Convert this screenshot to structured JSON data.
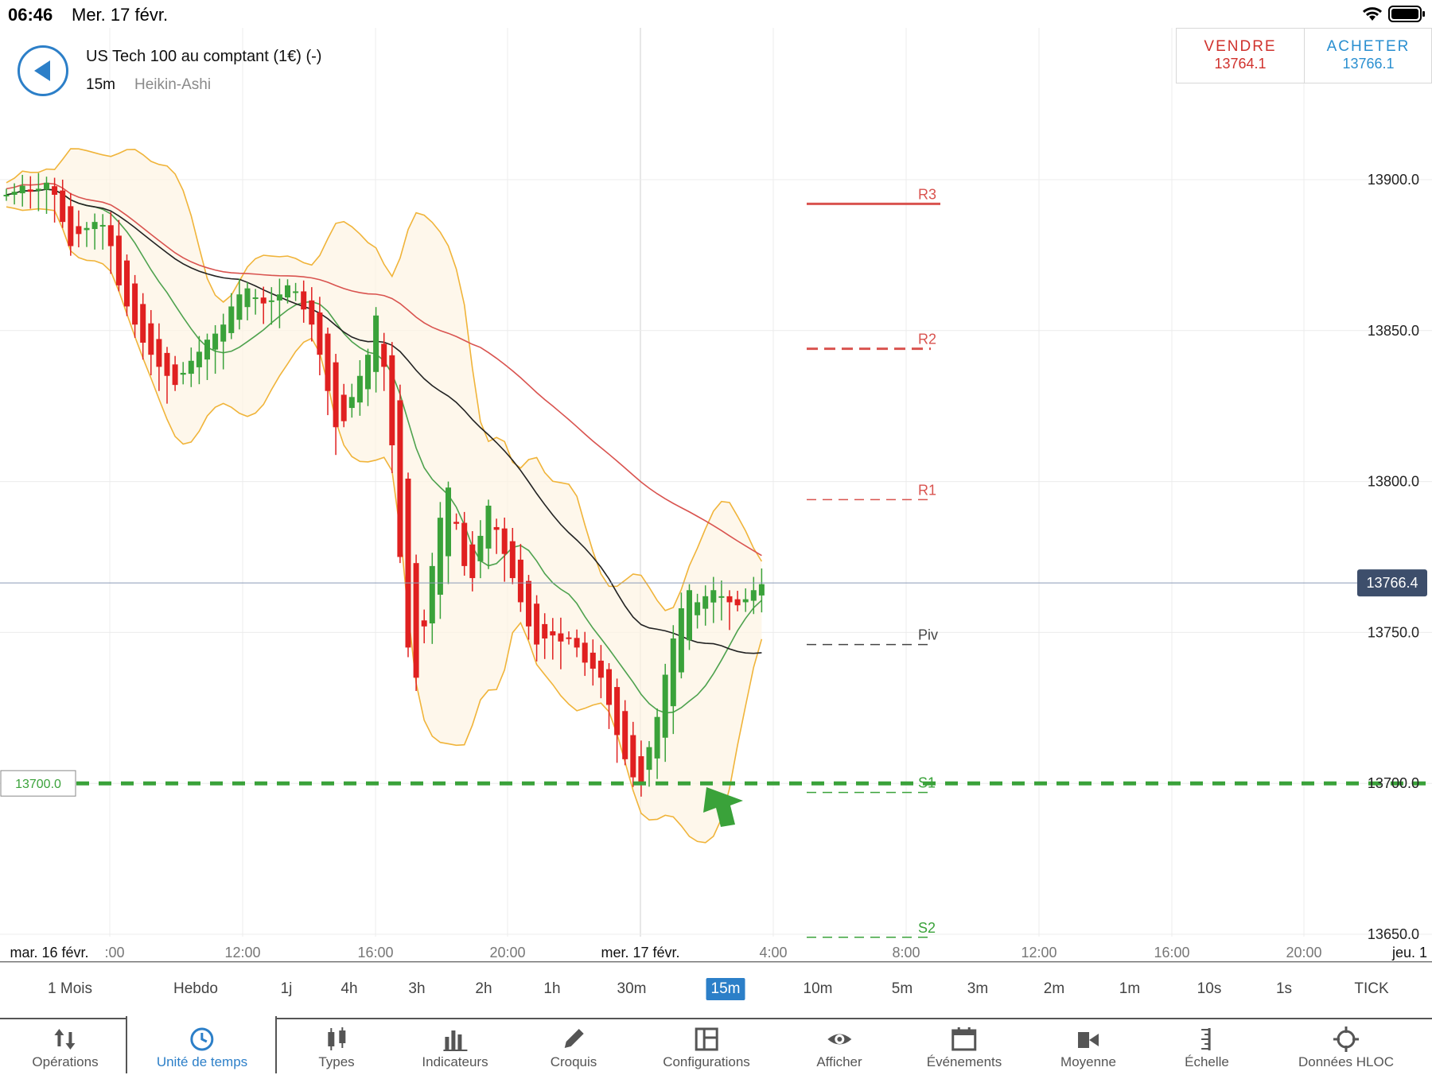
{
  "status_bar": {
    "time": "06:46",
    "date": "Mer. 17 févr."
  },
  "header": {
    "instrument": "US Tech 100 au comptant (1€) (-)",
    "timeframe": "15m",
    "chart_type": "Heikin-Ashi"
  },
  "trade": {
    "sell_label": "VENDRE",
    "sell_price": "13764.1",
    "buy_label": "ACHETER",
    "buy_price": "13766.1"
  },
  "colors": {
    "accent": "#2c7fc8",
    "sell": "#d0322d",
    "buy": "#2a8fd0",
    "up_candle": "#3aa23a",
    "down_candle": "#e02020",
    "support": "#3aa23a"
  },
  "chart_data": {
    "type": "candlestick",
    "y_ticks": [
      "13900.0",
      "13850.0",
      "13800.0",
      "13750.0",
      "13700.0",
      "13650.0"
    ],
    "ylim": [
      13640,
      13940
    ],
    "x_ticks": [
      "mar. 16 févr.",
      ":00",
      "12:00",
      "16:00",
      "20:00",
      "mer. 17 févr.",
      "4:00",
      "8:00",
      "12:00",
      "16:00",
      "20:00",
      "jeu. 1"
    ],
    "current_price": "13766.4",
    "horizontal_line_label": "13700.0",
    "horizontal_line_value": 13700,
    "pivots": [
      {
        "label": "R3",
        "value": 13892
      },
      {
        "label": "R2",
        "value": 13844
      },
      {
        "label": "R1",
        "value": 13794
      },
      {
        "label": "Piv",
        "value": 13746
      },
      {
        "label": "S1",
        "value": 13697
      },
      {
        "label": "S2",
        "value": 13649
      }
    ],
    "closes": [
      13895,
      13896,
      13898,
      13896,
      13897,
      13899,
      13895,
      13886,
      13878,
      13882,
      13884,
      13886,
      13885,
      13878,
      13865,
      13858,
      13852,
      13846,
      13842,
      13838,
      13835,
      13832,
      13836,
      13840,
      13843,
      13847,
      13849,
      13852,
      13858,
      13862,
      13864,
      13861,
      13859,
      13860,
      13862,
      13865,
      13863,
      13857,
      13852,
      13842,
      13830,
      13818,
      13820,
      13828,
      13835,
      13842,
      13855,
      13838,
      13812,
      13775,
      13745,
      13735,
      13752,
      13772,
      13788,
      13798,
      13786,
      13772,
      13768,
      13782,
      13792,
      13784,
      13776,
      13768,
      13760,
      13752,
      13746,
      13748,
      13749,
      13747,
      13748,
      13745,
      13740,
      13738,
      13735,
      13726,
      13716,
      13708,
      13702,
      13700,
      13712,
      13722,
      13736,
      13748,
      13758,
      13764,
      13760,
      13762,
      13764,
      13762,
      13760,
      13759,
      13761,
      13764,
      13766
    ],
    "indicators": [
      "Bollinger Bands",
      "Moving Average"
    ]
  },
  "timeframes": [
    "1 Mois",
    "Hebdo",
    "1j",
    "4h",
    "3h",
    "2h",
    "1h",
    "30m",
    "15m",
    "10m",
    "5m",
    "3m",
    "2m",
    "1m",
    "10s",
    "1s",
    "TICK"
  ],
  "timeframe_active": "15m",
  "toolbar": [
    {
      "label": "Opérations",
      "icon": "operations-arrows-icon"
    },
    {
      "label": "Unité de temps",
      "icon": "clock-icon"
    },
    {
      "label": "Types",
      "icon": "candles-icon"
    },
    {
      "label": "Indicateurs",
      "icon": "bar-chart-icon"
    },
    {
      "label": "Croquis",
      "icon": "pencil-icon"
    },
    {
      "label": "Configurations",
      "icon": "layout-icon"
    },
    {
      "label": "Afficher",
      "icon": "eye-icon"
    },
    {
      "label": "Événements",
      "icon": "calendar-icon"
    },
    {
      "label": "Moyenne",
      "icon": "camera-icon"
    },
    {
      "label": "Échelle",
      "icon": "scale-icon"
    },
    {
      "label": "Données HLOC",
      "icon": "crosshair-icon"
    }
  ]
}
